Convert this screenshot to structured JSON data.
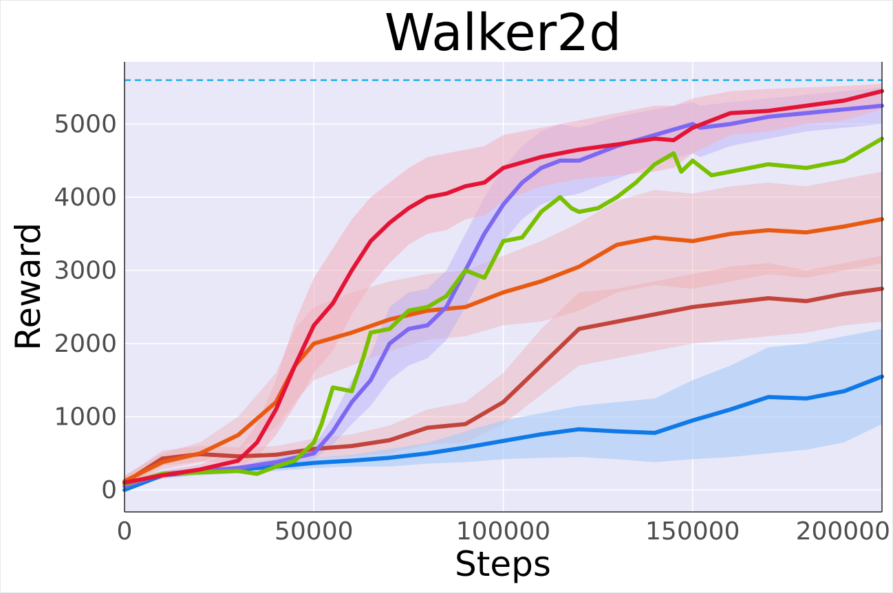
{
  "chart_data": {
    "type": "line",
    "title": "Walker2d",
    "xlabel": "Steps",
    "ylabel": "Reward",
    "xlim": [
      0,
      200000
    ],
    "ylim": [
      -300,
      5850
    ],
    "xticks": [
      0,
      50000,
      100000,
      150000,
      200000
    ],
    "xtick_labels": [
      "0",
      "50000",
      "100000",
      "150000",
      "200000"
    ],
    "yticks": [
      0,
      1000,
      2000,
      3000,
      4000,
      5000
    ],
    "ytick_labels": [
      "0",
      "1000",
      "2000",
      "3000",
      "4000",
      "5000"
    ],
    "grid": true,
    "background": "#e9e8f9",
    "reference_line": {
      "y": 5600,
      "color": "#1ab0ec",
      "style": "dashed"
    },
    "series": [
      {
        "color": "#f0a0a0",
        "band_opacity": 0.35,
        "x": [
          0,
          10000,
          20000,
          30000,
          40000,
          50000,
          60000,
          70000,
          80000,
          90000,
          100000,
          110000,
          120000,
          130000,
          140000,
          150000,
          160000,
          170000,
          180000,
          190000,
          200000
        ],
        "y": [
          100,
          430,
          490,
          460,
          480,
          560,
          600,
          680,
          850,
          900,
          1200,
          1700,
          2200,
          2300,
          2400,
          2500,
          2560,
          2620,
          2580,
          2680,
          2750
        ],
        "lower": [
          50,
          330,
          390,
          360,
          380,
          440,
          460,
          500,
          620,
          650,
          900,
          1300,
          1700,
          1800,
          1900,
          2000,
          2050,
          2100,
          2150,
          2250,
          2300
        ],
        "upper": [
          180,
          540,
          600,
          580,
          600,
          700,
          760,
          880,
          1100,
          1200,
          1600,
          2200,
          2700,
          2750,
          2850,
          2950,
          3050,
          3100,
          3000,
          3100,
          3200
        ],
        "line_color": "#c2443a"
      },
      {
        "color": "#f0a0a0",
        "band_opacity": 0.35,
        "x": [
          0,
          10000,
          20000,
          30000,
          40000,
          45000,
          50000,
          60000,
          70000,
          80000,
          90000,
          100000,
          110000,
          120000,
          130000,
          140000,
          150000,
          160000,
          170000,
          180000,
          190000,
          200000
        ],
        "y": [
          120,
          380,
          500,
          750,
          1200,
          1700,
          2000,
          2150,
          2330,
          2450,
          2500,
          2700,
          2850,
          3050,
          3350,
          3450,
          3400,
          3500,
          3550,
          3520,
          3600,
          3700
        ],
        "lower": [
          60,
          280,
          380,
          550,
          850,
          1200,
          1500,
          1700,
          1900,
          2050,
          2100,
          2250,
          2300,
          2450,
          2700,
          2800,
          2750,
          2850,
          2950,
          2900,
          3000,
          3100
        ],
        "upper": [
          200,
          500,
          650,
          1000,
          1600,
          2200,
          2500,
          2700,
          2850,
          2950,
          3000,
          3200,
          3400,
          3650,
          3950,
          4100,
          4050,
          4150,
          4200,
          4150,
          4250,
          4350
        ],
        "line_color": "#e85a12"
      },
      {
        "color": "#a9c9f5",
        "band_opacity": 0.6,
        "x": [
          0,
          10000,
          20000,
          30000,
          40000,
          50000,
          60000,
          70000,
          80000,
          90000,
          100000,
          110000,
          120000,
          130000,
          140000,
          150000,
          160000,
          170000,
          180000,
          190000,
          200000
        ],
        "y": [
          0,
          200,
          250,
          280,
          320,
          370,
          400,
          440,
          500,
          580,
          670,
          760,
          830,
          800,
          780,
          950,
          1100,
          1270,
          1250,
          1350,
          1550
        ],
        "lower": [
          0,
          160,
          200,
          230,
          260,
          300,
          320,
          320,
          360,
          380,
          420,
          440,
          450,
          420,
          380,
          420,
          450,
          500,
          550,
          650,
          900
        ],
        "upper": [
          40,
          240,
          300,
          330,
          380,
          440,
          480,
          560,
          640,
          800,
          950,
          1050,
          1150,
          1200,
          1250,
          1500,
          1700,
          1950,
          2000,
          2100,
          2200
        ],
        "line_color": "#0f79e8"
      },
      {
        "color": "#b9b1f7",
        "band_opacity": 0.5,
        "x": [
          0,
          10000,
          20000,
          30000,
          40000,
          50000,
          55000,
          60000,
          65000,
          70000,
          75000,
          80000,
          85000,
          90000,
          95000,
          100000,
          105000,
          110000,
          115000,
          120000,
          130000,
          140000,
          150000,
          152000,
          160000,
          170000,
          180000,
          190000,
          200000
        ],
        "y": [
          50,
          220,
          260,
          300,
          380,
          500,
          800,
          1200,
          1500,
          2000,
          2200,
          2250,
          2500,
          3000,
          3500,
          3900,
          4200,
          4400,
          4500,
          4500,
          4700,
          4850,
          5000,
          4950,
          5000,
          5100,
          5150,
          5200,
          5250
        ],
        "lower": [
          20,
          180,
          220,
          260,
          320,
          420,
          620,
          900,
          1150,
          1500,
          1700,
          1800,
          2050,
          2500,
          3000,
          3400,
          3700,
          3900,
          4000,
          4050,
          4250,
          4450,
          4600,
          4550,
          4700,
          4800,
          4900,
          4950,
          5000
        ],
        "upper": [
          80,
          260,
          300,
          340,
          440,
          600,
          1000,
          1500,
          1850,
          2500,
          2700,
          2750,
          3000,
          3500,
          4000,
          4400,
          4700,
          4900,
          5000,
          4950,
          5100,
          5200,
          5300,
          5250,
          5300,
          5350,
          5400,
          5450,
          5500
        ],
        "line_color": "#7d68f2"
      },
      {
        "color": "#c7dba8",
        "band_opacity": 0.0,
        "x": [
          0,
          10000,
          20000,
          30000,
          35000,
          40000,
          45000,
          50000,
          52000,
          55000,
          60000,
          63000,
          65000,
          70000,
          75000,
          80000,
          85000,
          90000,
          95000,
          100000,
          105000,
          110000,
          115000,
          118000,
          120000,
          125000,
          130000,
          135000,
          140000,
          145000,
          147000,
          150000,
          155000,
          160000,
          170000,
          180000,
          190000,
          200000
        ],
        "y": [
          80,
          220,
          240,
          260,
          220,
          320,
          400,
          650,
          900,
          1400,
          1350,
          1800,
          2150,
          2200,
          2450,
          2500,
          2650,
          3000,
          2900,
          3400,
          3450,
          3800,
          4000,
          3850,
          3800,
          3850,
          4000,
          4200,
          4450,
          4600,
          4350,
          4500,
          4300,
          4350,
          4450,
          4400,
          4500,
          4800
        ],
        "lower": [],
        "upper": [],
        "line_color": "#78c000"
      },
      {
        "color": "#f2b0c0",
        "band_opacity": 0.55,
        "x": [
          0,
          10000,
          20000,
          30000,
          35000,
          40000,
          45000,
          50000,
          55000,
          60000,
          65000,
          70000,
          75000,
          80000,
          85000,
          90000,
          95000,
          100000,
          110000,
          120000,
          130000,
          140000,
          145000,
          150000,
          160000,
          170000,
          180000,
          190000,
          200000
        ],
        "y": [
          100,
          200,
          280,
          400,
          650,
          1100,
          1700,
          2250,
          2550,
          3000,
          3400,
          3650,
          3850,
          4000,
          4050,
          4150,
          4200,
          4400,
          4550,
          4650,
          4720,
          4800,
          4780,
          4950,
          5150,
          5180,
          5250,
          5320,
          5450
        ],
        "lower": [
          50,
          150,
          220,
          300,
          450,
          750,
          1150,
          1600,
          1900,
          2400,
          2800,
          3100,
          3350,
          3500,
          3550,
          3700,
          3750,
          3950,
          4150,
          4250,
          4300,
          4350,
          4400,
          4600,
          4850,
          4900,
          5000,
          5050,
          5200
        ],
        "upper": [
          160,
          260,
          350,
          550,
          900,
          1500,
          2300,
          2900,
          3300,
          3700,
          4000,
          4200,
          4400,
          4550,
          4600,
          4650,
          4700,
          4850,
          4950,
          5050,
          5150,
          5250,
          5250,
          5350,
          5450,
          5480,
          5500,
          5520,
          5550
        ],
        "line_color": "#e31436"
      }
    ]
  }
}
